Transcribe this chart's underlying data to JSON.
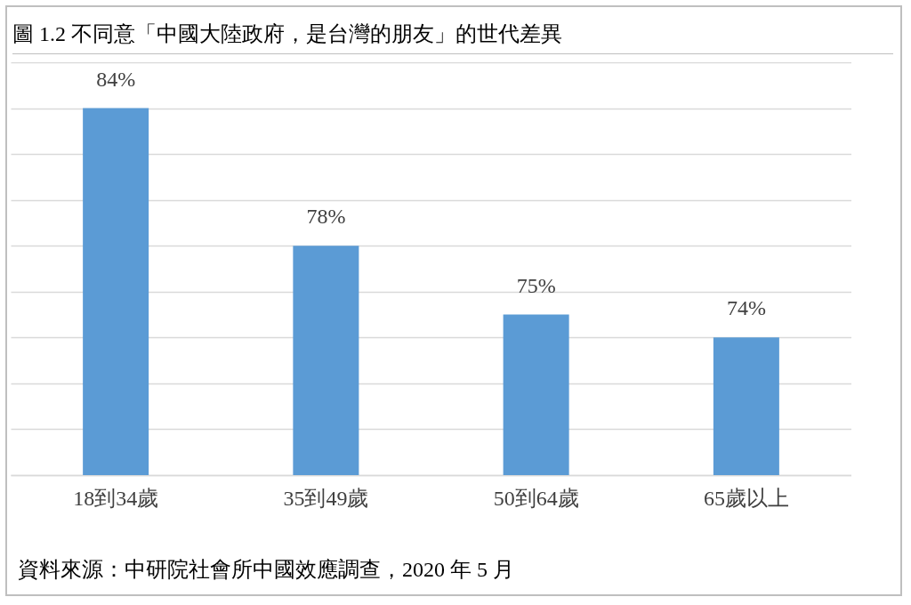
{
  "chart_data": {
    "type": "bar",
    "title": "圖 1.2 不同意「中國大陸政府，是台灣的朋友」的世代差異",
    "categories": [
      "18到34歲",
      "35到49歲",
      "50到64歲",
      "65歲以上"
    ],
    "values": [
      84,
      78,
      75,
      74
    ],
    "value_labels": [
      "84%",
      "78%",
      "75%",
      "74%"
    ],
    "color": "#5b9bd5",
    "ylim": [
      68,
      86
    ],
    "yticks": [
      {
        "value": 68,
        "label": null
      },
      {
        "value": 70,
        "label": null
      },
      {
        "value": 72,
        "label": null
      },
      {
        "value": 74,
        "label": null
      },
      {
        "value": 76,
        "label": null
      },
      {
        "value": 78,
        "label": null
      },
      {
        "value": 80,
        "label": null
      },
      {
        "value": 82,
        "label": null
      },
      {
        "value": 84,
        "label": null
      },
      {
        "value": 86,
        "label": null
      }
    ],
    "grid": true,
    "tick_labels": "x",
    "annotations": [
      "資料來源：中研院社會所中國效應調查，2020 年 5 月"
    ]
  }
}
